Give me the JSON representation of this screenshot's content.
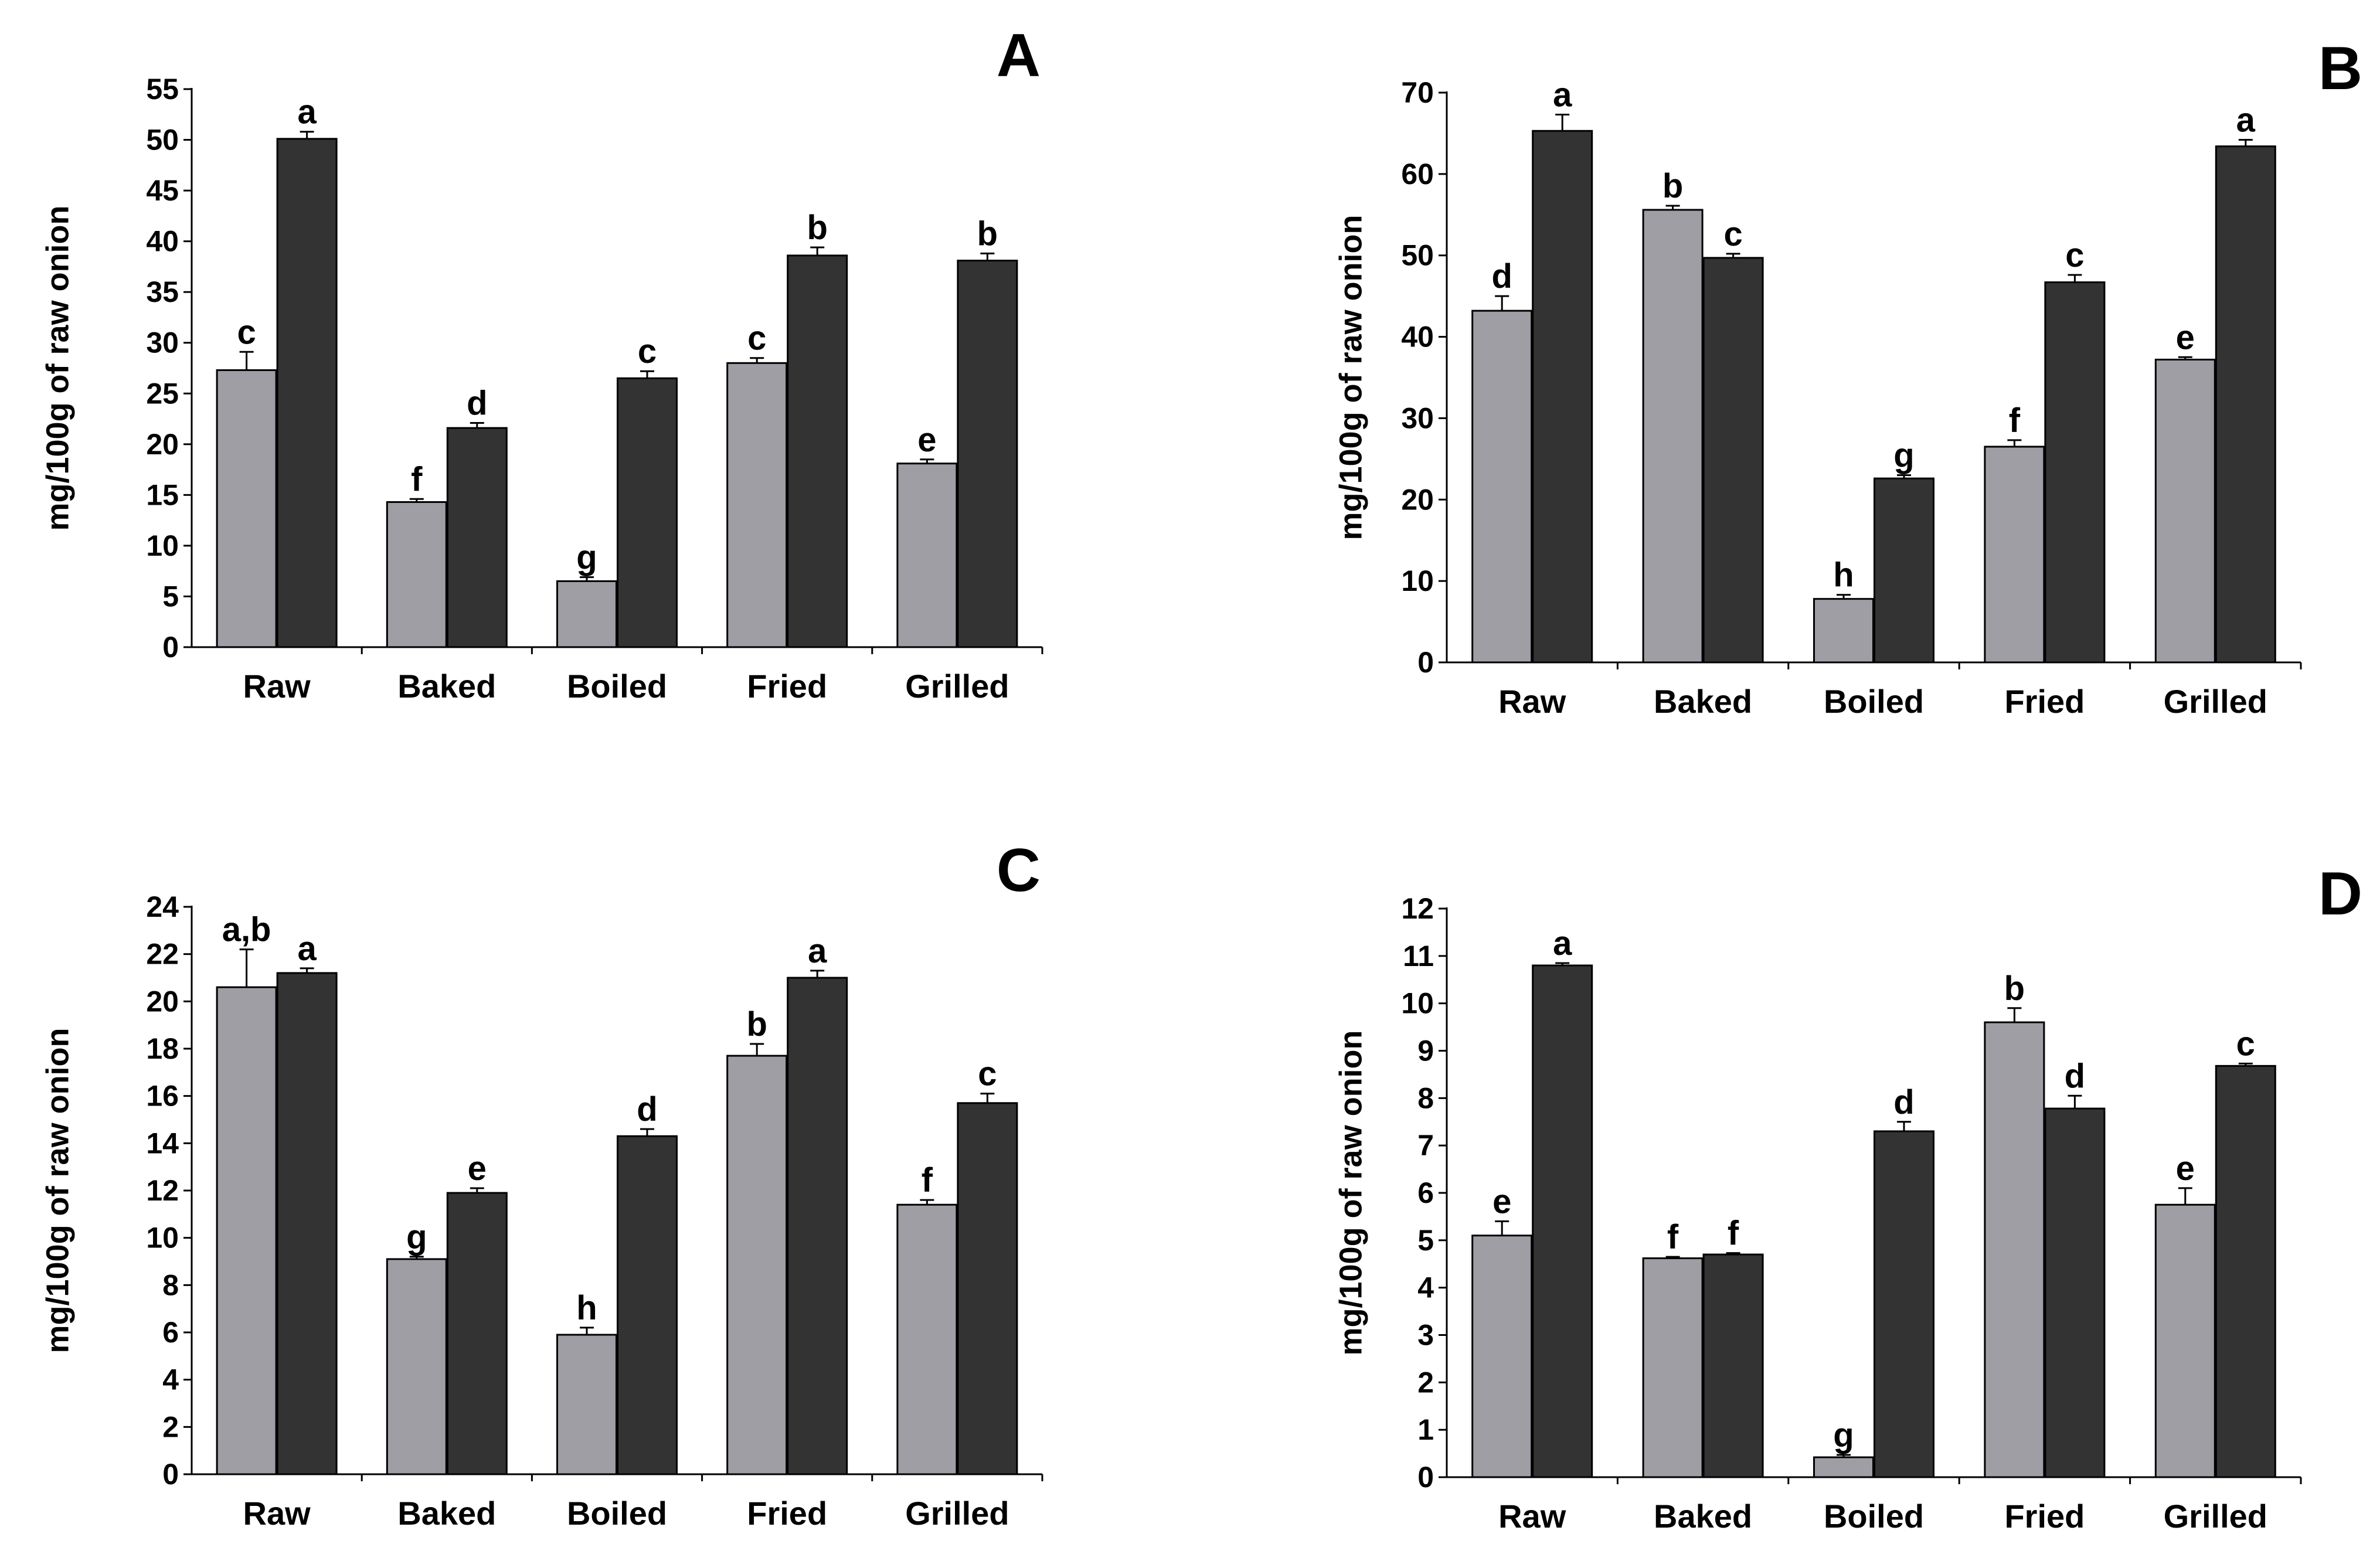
{
  "colors": {
    "series_raw_color": "#9e9ea4",
    "series_dark_color": "#333333",
    "axis": "#000000",
    "edge": "#000000"
  },
  "chart_data": [
    {
      "type": "bar",
      "title": "A",
      "ylabel": "mg/100g of raw onion",
      "xlabel": "",
      "categories": [
        "Raw",
        "Baked",
        "Boiled",
        "Fried",
        "Grilled"
      ],
      "ylim": [
        0,
        55
      ],
      "yticks": [
        0,
        5,
        10,
        15,
        20,
        25,
        30,
        35,
        40,
        45,
        50,
        55
      ],
      "series": [
        {
          "name": "light",
          "values": [
            27.3,
            14.3,
            6.5,
            28.0,
            18.1
          ],
          "errors": [
            1.8,
            0.3,
            0.4,
            0.5,
            0.4
          ],
          "letters": [
            "c",
            "f",
            "g",
            "c",
            "e"
          ]
        },
        {
          "name": "dark",
          "values": [
            50.1,
            21.6,
            26.5,
            38.6,
            38.1
          ],
          "errors": [
            0.7,
            0.5,
            0.7,
            0.8,
            0.7
          ],
          "letters": [
            "a",
            "d",
            "c",
            "b",
            "b"
          ]
        }
      ]
    },
    {
      "type": "bar",
      "title": "B",
      "ylabel": "mg/100g of raw onion",
      "xlabel": "",
      "categories": [
        "Raw",
        "Baked",
        "Boiled",
        "Fried",
        "Grilled"
      ],
      "ylim": [
        0,
        70
      ],
      "yticks": [
        0,
        10,
        20,
        30,
        40,
        50,
        60,
        70
      ],
      "series": [
        {
          "name": "light",
          "values": [
            43.2,
            55.6,
            7.8,
            26.5,
            37.2
          ],
          "errors": [
            1.8,
            0.5,
            0.5,
            0.8,
            0.3
          ],
          "letters": [
            "d",
            "b",
            "h",
            "f",
            "e"
          ]
        },
        {
          "name": "dark",
          "values": [
            65.3,
            49.7,
            22.6,
            46.7,
            63.4
          ],
          "errors": [
            2.0,
            0.5,
            0.4,
            0.9,
            0.8
          ],
          "letters": [
            "a",
            "c",
            "g",
            "c",
            "a"
          ]
        }
      ]
    },
    {
      "type": "bar",
      "title": "C",
      "ylabel": "mg/100g of raw onion",
      "xlabel": "",
      "categories": [
        "Raw",
        "Baked",
        "Boiled",
        "Fried",
        "Grilled"
      ],
      "ylim": [
        0,
        24
      ],
      "yticks": [
        0,
        2,
        4,
        6,
        8,
        10,
        12,
        14,
        16,
        18,
        20,
        22,
        24
      ],
      "series": [
        {
          "name": "light",
          "values": [
            20.6,
            9.1,
            5.9,
            17.7,
            11.4
          ],
          "errors": [
            1.6,
            0.1,
            0.3,
            0.5,
            0.2
          ],
          "letters": [
            "a,b",
            "g",
            "h",
            "b",
            "f"
          ]
        },
        {
          "name": "dark",
          "values": [
            21.2,
            11.9,
            14.3,
            21.0,
            15.7
          ],
          "errors": [
            0.2,
            0.2,
            0.3,
            0.3,
            0.4
          ],
          "letters": [
            "a",
            "e",
            "d",
            "a",
            "c"
          ]
        }
      ]
    },
    {
      "type": "bar",
      "title": "D",
      "ylabel": "mg/100g of raw onion",
      "xlabel": "",
      "categories": [
        "Raw",
        "Baked",
        "Boiled",
        "Fried",
        "Grilled"
      ],
      "ylim": [
        0,
        12
      ],
      "yticks": [
        0,
        1,
        2,
        3,
        4,
        5,
        6,
        7,
        8,
        9,
        10,
        11,
        12
      ],
      "series": [
        {
          "name": "light",
          "values": [
            5.1,
            4.62,
            0.42,
            9.6,
            5.75
          ],
          "errors": [
            0.3,
            0.03,
            0.05,
            0.3,
            0.35
          ],
          "letters": [
            "e",
            "f",
            "g",
            "b",
            "e"
          ]
        },
        {
          "name": "dark",
          "values": [
            10.8,
            4.7,
            7.3,
            7.78,
            8.68
          ],
          "errors": [
            0.05,
            0.03,
            0.2,
            0.27,
            0.05
          ],
          "letters": [
            "a",
            "f",
            "d",
            "d",
            "c"
          ]
        }
      ]
    }
  ]
}
